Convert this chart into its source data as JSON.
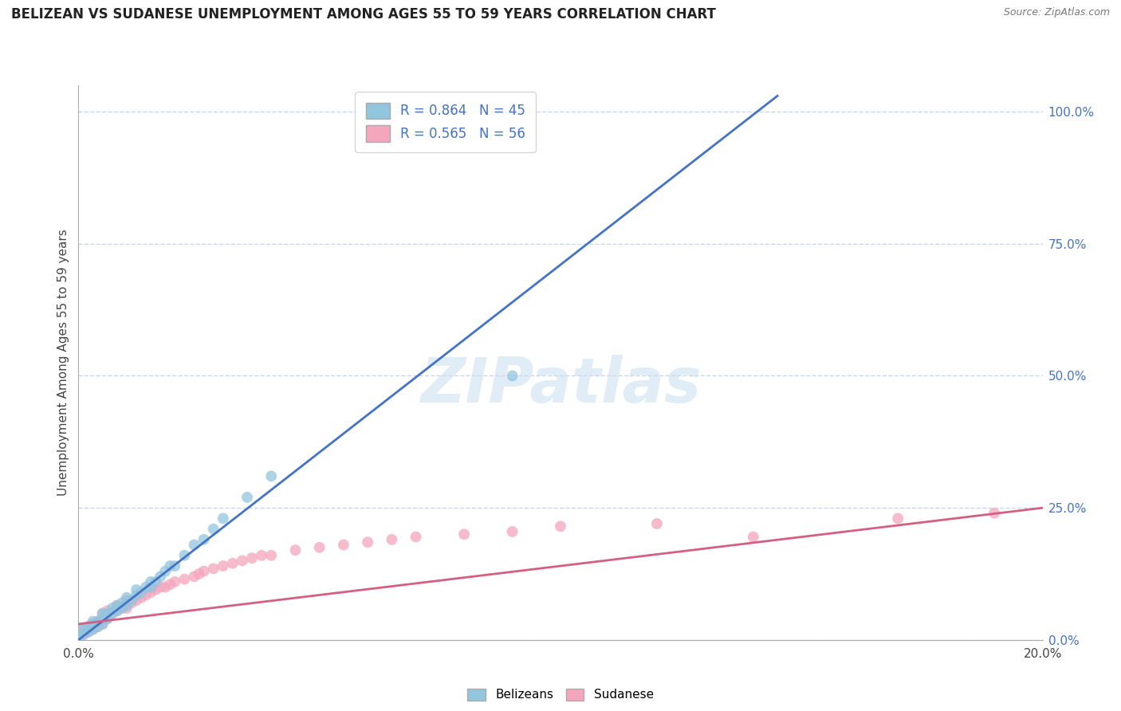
{
  "title": "BELIZEAN VS SUDANESE UNEMPLOYMENT AMONG AGES 55 TO 59 YEARS CORRELATION CHART",
  "source_text": "Source: ZipAtlas.com",
  "ylabel": "Unemployment Among Ages 55 to 59 years",
  "xlim": [
    0.0,
    0.2
  ],
  "ylim": [
    0.0,
    1.05
  ],
  "xticks": [
    0.0,
    0.2
  ],
  "xticklabels": [
    "0.0%",
    "20.0%"
  ],
  "yticks_right": [
    0.0,
    0.25,
    0.5,
    0.75,
    1.0
  ],
  "ytick_right_labels": [
    "0.0%",
    "25.0%",
    "50.0%",
    "75.0%",
    "100.0%"
  ],
  "belizean_color": "#92c5de",
  "sudanese_color": "#f4a6bd",
  "belizean_line_color": "#4472c4",
  "sudanese_line_color": "#d45f82",
  "legend_r_belizean": "R = 0.864",
  "legend_n_belizean": "N = 45",
  "legend_r_sudanese": "R = 0.565",
  "legend_n_sudanese": "N = 56",
  "watermark": "ZIPatlas",
  "watermark_color": "#c8ddf0",
  "background_color": "#ffffff",
  "grid_color": "#c8d8e8",
  "belizean_scatter": {
    "x": [
      0.0,
      0.0,
      0.001,
      0.001,
      0.002,
      0.002,
      0.002,
      0.003,
      0.003,
      0.003,
      0.004,
      0.004,
      0.005,
      0.005,
      0.005,
      0.006,
      0.006,
      0.007,
      0.007,
      0.008,
      0.008,
      0.009,
      0.009,
      0.01,
      0.01,
      0.011,
      0.012,
      0.012,
      0.013,
      0.014,
      0.015,
      0.015,
      0.016,
      0.017,
      0.018,
      0.019,
      0.02,
      0.022,
      0.024,
      0.026,
      0.028,
      0.03,
      0.035,
      0.04,
      0.09
    ],
    "y": [
      0.005,
      0.01,
      0.01,
      0.02,
      0.015,
      0.02,
      0.025,
      0.02,
      0.03,
      0.035,
      0.025,
      0.035,
      0.03,
      0.04,
      0.05,
      0.04,
      0.05,
      0.05,
      0.06,
      0.055,
      0.065,
      0.06,
      0.07,
      0.065,
      0.08,
      0.075,
      0.085,
      0.095,
      0.09,
      0.1,
      0.1,
      0.11,
      0.11,
      0.12,
      0.13,
      0.14,
      0.14,
      0.16,
      0.18,
      0.19,
      0.21,
      0.23,
      0.27,
      0.31,
      0.5
    ]
  },
  "sudanese_scatter": {
    "x": [
      0.0,
      0.0,
      0.0,
      0.001,
      0.001,
      0.002,
      0.002,
      0.003,
      0.003,
      0.004,
      0.004,
      0.005,
      0.005,
      0.005,
      0.006,
      0.006,
      0.007,
      0.008,
      0.008,
      0.009,
      0.01,
      0.01,
      0.011,
      0.012,
      0.013,
      0.014,
      0.015,
      0.016,
      0.017,
      0.018,
      0.019,
      0.02,
      0.022,
      0.024,
      0.025,
      0.026,
      0.028,
      0.03,
      0.032,
      0.034,
      0.036,
      0.038,
      0.04,
      0.045,
      0.05,
      0.055,
      0.06,
      0.065,
      0.07,
      0.08,
      0.09,
      0.1,
      0.12,
      0.14,
      0.17,
      0.19
    ],
    "y": [
      0.005,
      0.01,
      0.015,
      0.01,
      0.02,
      0.015,
      0.025,
      0.02,
      0.03,
      0.025,
      0.035,
      0.03,
      0.04,
      0.05,
      0.04,
      0.055,
      0.05,
      0.055,
      0.065,
      0.06,
      0.06,
      0.075,
      0.07,
      0.075,
      0.08,
      0.085,
      0.09,
      0.095,
      0.1,
      0.1,
      0.105,
      0.11,
      0.115,
      0.12,
      0.125,
      0.13,
      0.135,
      0.14,
      0.145,
      0.15,
      0.155,
      0.16,
      0.16,
      0.17,
      0.175,
      0.18,
      0.185,
      0.19,
      0.195,
      0.2,
      0.205,
      0.215,
      0.22,
      0.195,
      0.23,
      0.24
    ]
  },
  "belizean_trendline": {
    "x": [
      0.0,
      0.145
    ],
    "y": [
      0.0,
      1.03
    ]
  },
  "sudanese_trendline": {
    "x": [
      0.0,
      0.2
    ],
    "y": [
      0.03,
      0.25
    ]
  }
}
